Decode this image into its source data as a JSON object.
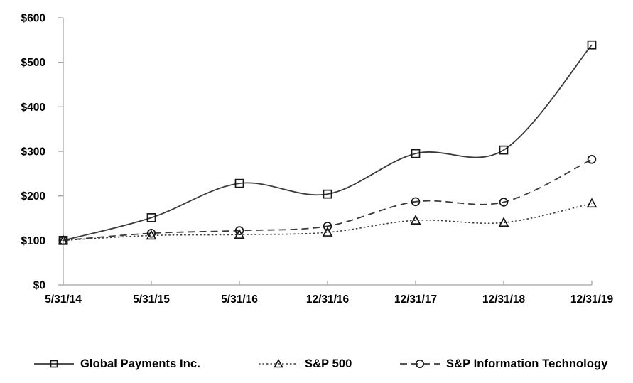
{
  "chart_data": {
    "type": "line",
    "title": "",
    "categories": [
      "5/31/14",
      "5/31/15",
      "5/31/16",
      "12/31/16",
      "12/31/17",
      "12/31/18",
      "12/31/19"
    ],
    "y_axis": {
      "min": 0,
      "max": 600,
      "step": 100,
      "prefix": "$",
      "tick_labels": [
        "$0",
        "$100",
        "$200",
        "$300",
        "$400",
        "$500",
        "$600"
      ]
    },
    "series": [
      {
        "name": "Global Payments Inc.",
        "marker": "square",
        "line_style": "solid",
        "values": [
          100,
          151,
          228,
          204,
          295,
          303,
          539
        ]
      },
      {
        "name": "S&P 500",
        "marker": "triangle",
        "line_style": "dotted",
        "values": [
          100,
          111,
          113,
          118,
          145,
          140,
          183
        ]
      },
      {
        "name": "S&P Information Technology",
        "marker": "circle",
        "line_style": "dashed",
        "values": [
          100,
          116,
          122,
          132,
          187,
          186,
          282
        ]
      }
    ],
    "smooth_lines": true,
    "grid": false,
    "legend_position": "bottom",
    "colors": {
      "line": "#3a3a3a",
      "marker_stroke": "#161616",
      "axis": "#a3a3a3",
      "text": "#000000",
      "background": "#ffffff"
    }
  }
}
